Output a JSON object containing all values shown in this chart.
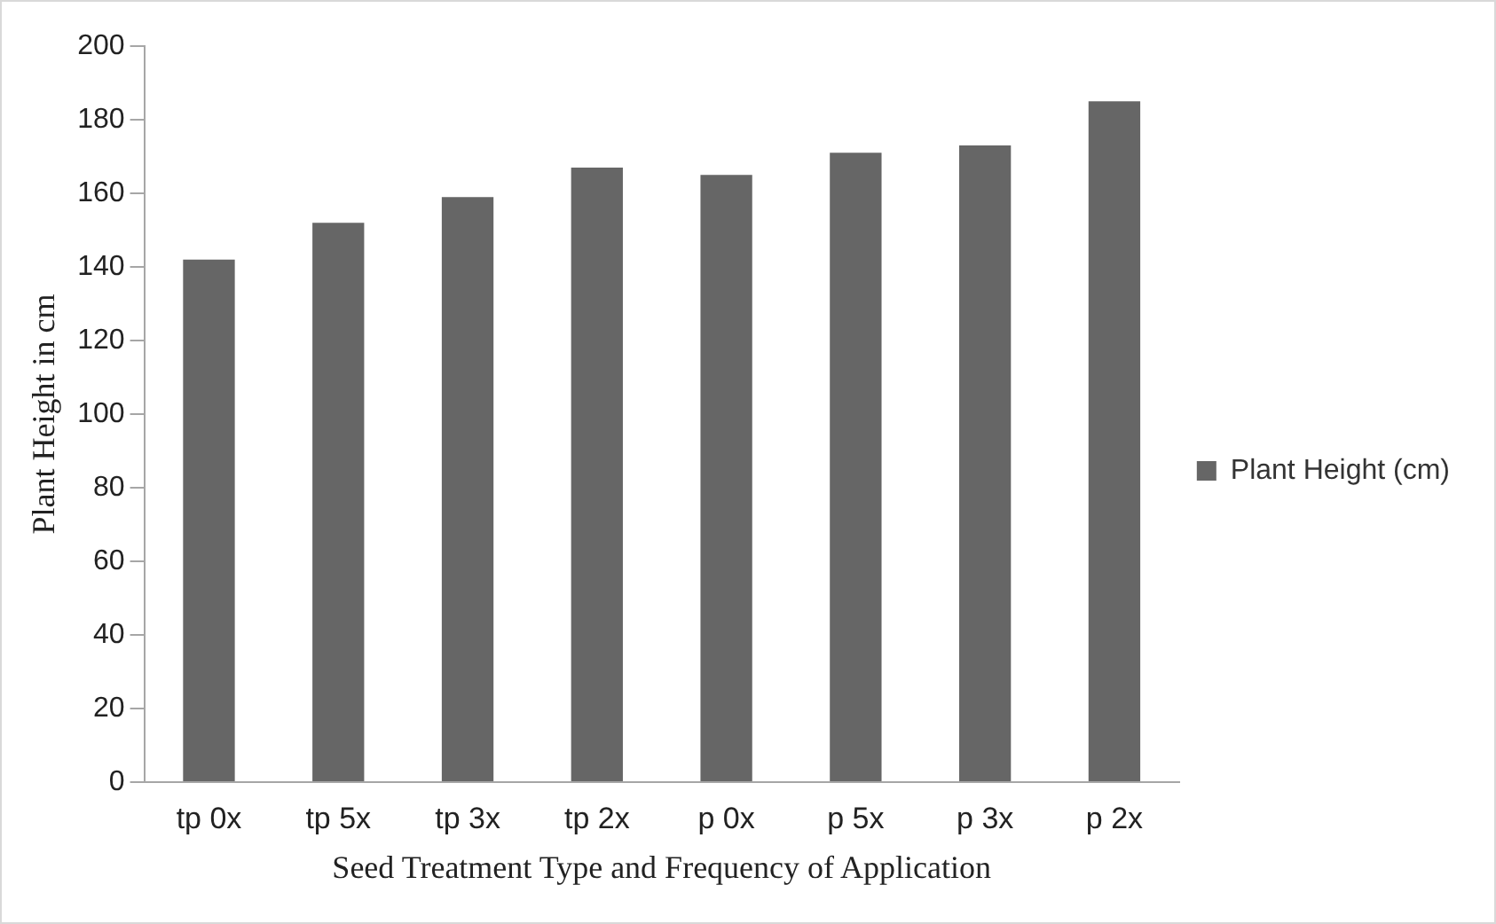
{
  "chart_data": {
    "type": "bar",
    "xlabel": "Seed Treatment Type and Frequency of Application",
    "ylabel": "Plant Height in cm",
    "categories": [
      "tp 0x",
      "tp 5x",
      "tp 3x",
      "tp 2x",
      "p 0x",
      "p 5x",
      "p 3x",
      "p 2x"
    ],
    "series": [
      {
        "name": "Plant Height (cm)",
        "color": "#666666",
        "values": [
          142,
          152,
          159,
          167,
          165,
          171,
          173,
          185
        ]
      }
    ],
    "ylim": [
      0,
      200
    ],
    "yticks": [
      0,
      20,
      40,
      60,
      80,
      100,
      120,
      140,
      160,
      180,
      200
    ],
    "grid": false,
    "legend": "right"
  }
}
